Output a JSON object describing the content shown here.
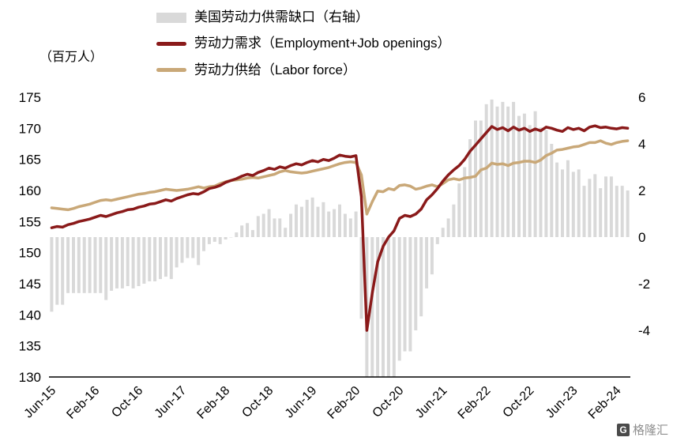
{
  "watermark": {
    "logo_letter": "G",
    "text": "格隆汇"
  },
  "chart_data": {
    "type": "combo",
    "left_axis": {
      "label": "（百万人）",
      "min": 130,
      "max": 175,
      "ticks": [
        175,
        170,
        165,
        160,
        155,
        150,
        145,
        140,
        135,
        130
      ]
    },
    "right_axis": {
      "min": -6,
      "max": 6,
      "ticks": [
        6,
        4,
        2,
        0,
        -2,
        -4
      ]
    },
    "x_tick_step": 8,
    "x_tick_labels": [
      "Jun-15",
      "Feb-16",
      "Oct-16",
      "Jun-17",
      "Feb-18",
      "Oct-18",
      "Jun-19",
      "Feb-20",
      "Oct-20",
      "Jun-21",
      "Feb-22",
      "Oct-22",
      "Jun-23",
      "Feb-24"
    ],
    "months": [
      "Jun-15",
      "Jul-15",
      "Aug-15",
      "Sep-15",
      "Oct-15",
      "Nov-15",
      "Dec-15",
      "Jan-16",
      "Feb-16",
      "Mar-16",
      "Apr-16",
      "May-16",
      "Jun-16",
      "Jul-16",
      "Aug-16",
      "Sep-16",
      "Oct-16",
      "Nov-16",
      "Dec-16",
      "Jan-17",
      "Feb-17",
      "Mar-17",
      "Apr-17",
      "May-17",
      "Jun-17",
      "Jul-17",
      "Aug-17",
      "Sep-17",
      "Oct-17",
      "Nov-17",
      "Dec-17",
      "Jan-18",
      "Feb-18",
      "Mar-18",
      "Apr-18",
      "May-18",
      "Jun-18",
      "Jul-18",
      "Aug-18",
      "Sep-18",
      "Oct-18",
      "Nov-18",
      "Dec-18",
      "Jan-19",
      "Feb-19",
      "Mar-19",
      "Apr-19",
      "May-19",
      "Jun-19",
      "Jul-19",
      "Aug-19",
      "Sep-19",
      "Oct-19",
      "Nov-19",
      "Dec-19",
      "Jan-20",
      "Feb-20",
      "Mar-20",
      "Apr-20",
      "May-20",
      "Jun-20",
      "Jul-20",
      "Aug-20",
      "Sep-20",
      "Oct-20",
      "Nov-20",
      "Dec-20",
      "Jan-21",
      "Feb-21",
      "Mar-21",
      "Apr-21",
      "May-21",
      "Jun-21",
      "Jul-21",
      "Aug-21",
      "Sep-21",
      "Oct-21",
      "Nov-21",
      "Dec-21",
      "Jan-22",
      "Feb-22",
      "Mar-22",
      "Apr-22",
      "May-22",
      "Jun-22",
      "Jul-22",
      "Aug-22",
      "Sep-22",
      "Oct-22",
      "Nov-22",
      "Dec-22",
      "Jan-23",
      "Feb-23",
      "Mar-23",
      "Apr-23",
      "May-23",
      "Jun-23",
      "Jul-23",
      "Aug-23",
      "Sep-23",
      "Oct-23",
      "Nov-23",
      "Dec-23",
      "Jan-24",
      "Feb-24",
      "Mar-24",
      "Apr-24"
    ],
    "series": [
      {
        "key": "gap",
        "name": "美国劳动力供需缺口（右轴）",
        "type": "bar",
        "axis": "right",
        "color": "#D9D9D9",
        "values": [
          -3.2,
          -2.9,
          -2.9,
          -2.4,
          -2.4,
          -2.4,
          -2.4,
          -2.4,
          -2.4,
          -2.4,
          -2.7,
          -2.3,
          -2.2,
          -2.2,
          -2.1,
          -2.2,
          -2.1,
          -2.0,
          -1.9,
          -1.9,
          -1.8,
          -1.7,
          -1.8,
          -1.3,
          -1.1,
          -0.9,
          -0.9,
          -1.2,
          -0.6,
          -0.3,
          -0.2,
          -0.3,
          -0.1,
          0.0,
          0.2,
          0.5,
          0.6,
          0.3,
          0.9,
          1.0,
          1.2,
          0.8,
          0.8,
          0.4,
          1.0,
          1.4,
          1.3,
          1.6,
          1.7,
          1.3,
          1.5,
          1.1,
          1.2,
          1.4,
          1.0,
          0.8,
          1.1,
          -3.5,
          -18.7,
          -14.7,
          -11.4,
          -8.8,
          -7.8,
          -6.6,
          -5.3,
          -4.9,
          -4.9,
          -4.0,
          -3.4,
          -2.2,
          -1.6,
          -0.3,
          0.4,
          0.8,
          1.4,
          2.3,
          3.0,
          4.2,
          5.0,
          5.0,
          5.7,
          5.9,
          5.6,
          5.8,
          5.6,
          5.8,
          5.2,
          5.3,
          4.8,
          5.4,
          4.7,
          4.6,
          4.0,
          3.2,
          2.9,
          3.3,
          2.8,
          2.9,
          2.2,
          2.5,
          2.7,
          2.1,
          2.6,
          2.6,
          2.2,
          2.2,
          2.0
        ]
      },
      {
        "key": "demand",
        "name": "劳动力需求（Employment+Job openings）",
        "type": "line",
        "axis": "left",
        "color": "#8A1A1A",
        "values": [
          154.0,
          154.2,
          154.1,
          154.5,
          154.7,
          155.0,
          155.2,
          155.4,
          155.7,
          156.0,
          155.8,
          156.1,
          156.4,
          156.6,
          156.9,
          157.0,
          157.3,
          157.5,
          157.8,
          157.9,
          158.2,
          158.5,
          158.3,
          158.7,
          159.0,
          159.3,
          159.5,
          159.4,
          159.8,
          160.3,
          160.5,
          160.8,
          161.3,
          161.6,
          161.9,
          162.3,
          162.6,
          162.4,
          162.9,
          163.2,
          163.6,
          163.4,
          163.8,
          163.6,
          164.0,
          164.3,
          164.1,
          164.5,
          164.8,
          164.6,
          165.0,
          164.8,
          165.2,
          165.7,
          165.5,
          165.4,
          165.6,
          159.0,
          137.5,
          143.5,
          148.5,
          151.0,
          152.5,
          153.5,
          155.5,
          156.0,
          155.8,
          156.2,
          157.0,
          158.5,
          159.3,
          160.3,
          161.5,
          162.5,
          163.3,
          164.0,
          165.0,
          166.3,
          167.3,
          168.3,
          169.3,
          170.3,
          169.8,
          170.1,
          169.6,
          170.2,
          169.7,
          170.0,
          169.5,
          169.9,
          169.6,
          170.2,
          170.0,
          169.7,
          169.5,
          170.1,
          169.8,
          170.0,
          169.6,
          170.2,
          170.4,
          170.1,
          170.2,
          170.0,
          169.9,
          170.1,
          170.0
        ]
      },
      {
        "key": "supply",
        "name": "劳动力供给（Labor force）",
        "type": "line",
        "axis": "left",
        "color": "#C9A878",
        "values": [
          157.2,
          157.1,
          157.0,
          156.9,
          157.1,
          157.4,
          157.6,
          157.8,
          158.1,
          158.4,
          158.5,
          158.4,
          158.6,
          158.8,
          159.0,
          159.2,
          159.4,
          159.5,
          159.7,
          159.8,
          160.0,
          160.2,
          160.1,
          160.0,
          160.1,
          160.2,
          160.4,
          160.6,
          160.4,
          160.6,
          160.7,
          161.1,
          161.4,
          161.6,
          161.7,
          161.8,
          162.0,
          162.1,
          162.0,
          162.2,
          162.4,
          162.6,
          163.0,
          163.2,
          163.0,
          162.9,
          162.8,
          162.9,
          163.1,
          163.3,
          163.5,
          163.7,
          164.0,
          164.3,
          164.5,
          164.6,
          164.5,
          162.5,
          156.2,
          158.2,
          159.9,
          159.8,
          160.3,
          160.1,
          160.8,
          160.9,
          160.7,
          160.2,
          160.4,
          160.7,
          160.9,
          160.6,
          161.1,
          161.7,
          161.9,
          161.7,
          162.0,
          162.1,
          162.3,
          163.3,
          163.6,
          164.4,
          164.2,
          164.3,
          164.0,
          164.4,
          164.5,
          164.7,
          164.7,
          164.5,
          164.9,
          165.6,
          166.0,
          166.5,
          166.6,
          166.8,
          167.0,
          167.1,
          167.4,
          167.7,
          167.7,
          168.0,
          167.6,
          167.4,
          167.7,
          167.9,
          168.0
        ]
      }
    ]
  }
}
